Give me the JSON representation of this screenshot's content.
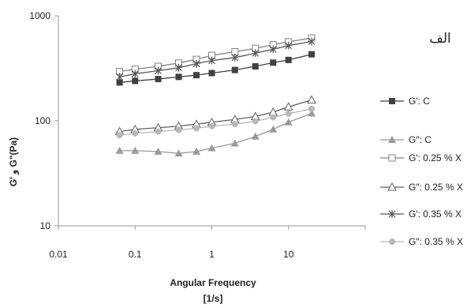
{
  "panel_label": "الف",
  "chart_data": {
    "type": "line",
    "xlabel_line1": "Angular Frequency",
    "xlabel_line2": "[1/s]",
    "ylabel": "G' و  G\"(Pa)",
    "xscale": "log",
    "yscale": "log",
    "xlim": [
      0.01,
      100
    ],
    "ylim": [
      10,
      1000
    ],
    "x_ticks": [
      "0.01",
      "0.1",
      "1",
      "10"
    ],
    "y_ticks": [
      "10",
      "100",
      "1000"
    ],
    "grid": false,
    "legend_position": "right",
    "x": [
      0.0628,
      0.1,
      0.2,
      0.37,
      0.63,
      1.0,
      2.0,
      3.7,
      6.3,
      10.0,
      20.0
    ],
    "series": [
      {
        "name": "G′: C",
        "marker": "filled-square",
        "color": "#404040",
        "values": [
          232,
          240,
          250,
          262,
          272,
          285,
          305,
          330,
          358,
          380,
          430
        ]
      },
      {
        "name": "G″: C",
        "marker": "filled-triangle",
        "color": "#9a9a9a",
        "values": [
          52,
          52,
          51,
          49,
          51,
          55,
          61,
          71,
          83,
          97,
          118
        ]
      },
      {
        "name": "G′: 0.25 % X",
        "marker": "open-square",
        "color": "#808080",
        "values": [
          295,
          310,
          330,
          355,
          385,
          420,
          455,
          490,
          530,
          565,
          615
        ]
      },
      {
        "name": "G″: 0.25 % X",
        "marker": "open-triangle",
        "color": "#606060",
        "values": [
          79,
          83,
          86,
          89,
          93,
          97,
          103,
          110,
          121,
          136,
          158
        ]
      },
      {
        "name": "G′: 0.35 % X",
        "marker": "star",
        "color": "#555555",
        "values": [
          262,
          280,
          300,
          320,
          350,
          375,
          400,
          440,
          480,
          520,
          570
        ]
      },
      {
        "name": "G″: 0.35 % X",
        "marker": "filled-circle",
        "color": "#b8b8b8",
        "values": [
          73,
          76,
          79,
          82,
          85,
          89,
          93,
          99,
          108,
          117,
          130
        ]
      }
    ]
  }
}
